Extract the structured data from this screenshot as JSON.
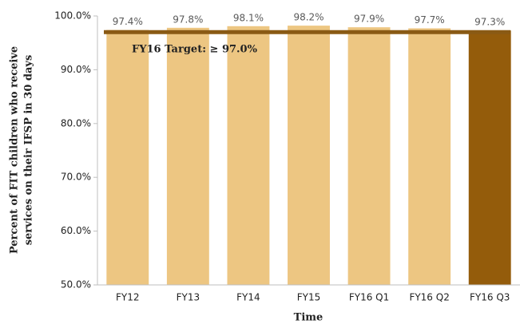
{
  "chart_data": {
    "type": "bar",
    "categories": [
      "FY12",
      "FY13",
      "FY14",
      "FY15",
      "FY16 Q1",
      "FY16 Q2",
      "FY16 Q3"
    ],
    "values": [
      97.4,
      97.8,
      98.1,
      98.2,
      97.9,
      97.7,
      97.3
    ],
    "value_labels": [
      "97.4%",
      "97.8%",
      "98.1%",
      "98.2%",
      "97.9%",
      "97.7%",
      "97.3%"
    ],
    "colors": [
      "#edc682",
      "#edc682",
      "#edc682",
      "#edc682",
      "#edc682",
      "#edc682",
      "#945c0b"
    ],
    "ylim": [
      50,
      100
    ],
    "yticks": [
      {
        "value": 50,
        "label": "50.0%"
      },
      {
        "value": 60,
        "label": "60.0%"
      },
      {
        "value": 70,
        "label": "70.0%"
      },
      {
        "value": 80,
        "label": "80.0%"
      },
      {
        "value": 90,
        "label": "90.0%"
      },
      {
        "value": 100,
        "label": "100.0%"
      }
    ],
    "y_label": [
      "Percent of FIT children who receive",
      "services on their IFSP in 30 days"
    ],
    "x_label": "Time",
    "target": {
      "value": 97,
      "label": "FY16 Target: ≥ 97.0%",
      "color": "#8a5a14"
    },
    "grid": false
  }
}
